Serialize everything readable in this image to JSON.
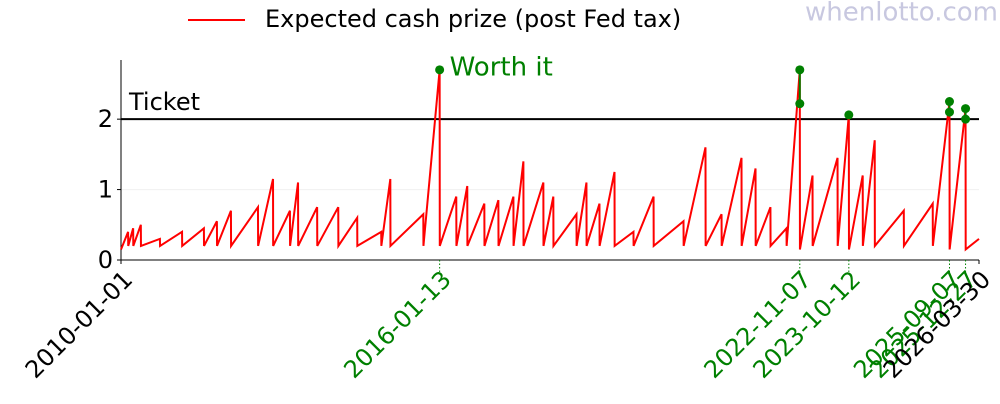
{
  "chart_data": {
    "type": "line",
    "watermark": "whenlotto.com",
    "x": [
      "2010-01-01",
      "2010-02-19",
      "2010-02-20",
      "2010-03-26",
      "2010-03-27",
      "2010-05-18",
      "2010-05-19",
      "2010-09-27",
      "2010-09-28",
      "2011-02-27",
      "2011-02-28",
      "2011-07-28",
      "2011-07-29",
      "2011-10-26",
      "2011-10-27",
      "2012-01-31",
      "2012-02-01",
      "2012-08-05",
      "2012-08-06",
      "2012-11-17",
      "2012-11-18",
      "2013-03-14",
      "2013-03-15",
      "2013-05-09",
      "2013-05-10",
      "2013-09-18",
      "2013-09-19",
      "2014-02-11",
      "2014-02-12",
      "2014-06-22",
      "2014-06-23",
      "2014-12-05",
      "2014-12-06",
      "2015-02-06",
      "2015-02-07",
      "2015-09-22",
      "2015-09-23",
      "2016-01-13",
      "2016-01-14",
      "2016-05-07",
      "2016-05-08",
      "2016-07-22",
      "2016-07-23",
      "2016-11-17",
      "2016-11-18",
      "2017-02-22",
      "2017-02-23",
      "2017-06-06",
      "2017-06-07",
      "2017-08-14",
      "2017-08-15",
      "2017-12-30",
      "2017-12-31",
      "2018-03-09",
      "2018-03-10",
      "2018-08-16",
      "2018-08-17",
      "2018-10-24",
      "2018-10-25",
      "2019-01-22",
      "2019-01-23",
      "2019-05-06",
      "2019-05-07",
      "2019-09-14",
      "2019-09-15",
      "2020-01-31",
      "2020-02-01",
      "2020-08-25",
      "2020-08-26",
      "2021-01-24",
      "2021-01-25",
      "2021-05-15",
      "2021-05-16",
      "2021-09-30",
      "2021-10-01",
      "2022-01-05",
      "2022-01-06",
      "2022-04-18",
      "2022-04-19",
      "2022-08-07",
      "2022-08-08",
      "2022-11-07",
      "2022-11-08",
      "2023-02-03",
      "2023-02-04",
      "2023-07-26",
      "2023-07-27",
      "2023-10-12",
      "2023-10-13",
      "2024-01-16",
      "2024-01-17",
      "2024-04-08",
      "2024-04-09",
      "2024-10-26",
      "2024-10-27",
      "2025-05-14",
      "2025-05-15",
      "2025-09-07",
      "2025-09-08",
      "2025-12-27",
      "2025-12-28",
      "2026-03-30"
    ],
    "series": [
      {
        "name": "Expected cash prize (post Fed tax)",
        "color": "#ff0000",
        "values": [
          0.15,
          0.4,
          0.2,
          0.45,
          0.2,
          0.5,
          0.2,
          0.3,
          0.2,
          0.4,
          0.2,
          0.45,
          0.2,
          0.55,
          0.2,
          0.7,
          0.2,
          0.75,
          0.2,
          1.15,
          0.2,
          0.7,
          0.2,
          1.1,
          0.2,
          0.75,
          0.2,
          0.75,
          0.2,
          0.6,
          0.2,
          0.4,
          0.2,
          1.15,
          0.2,
          0.65,
          0.2,
          2.7,
          0.2,
          0.9,
          0.2,
          1.05,
          0.2,
          0.8,
          0.2,
          0.85,
          0.2,
          0.9,
          0.2,
          1.4,
          0.2,
          1.1,
          0.2,
          0.9,
          0.2,
          0.65,
          0.2,
          1.1,
          0.2,
          0.8,
          0.2,
          1.25,
          0.2,
          0.4,
          0.2,
          0.9,
          0.2,
          0.55,
          0.2,
          1.6,
          0.2,
          0.65,
          0.2,
          1.45,
          0.2,
          1.3,
          0.2,
          0.75,
          0.2,
          0.45,
          0.2,
          2.7,
          0.15,
          1.2,
          0.2,
          1.45,
          0.2,
          2.06,
          0.15,
          1.2,
          0.2,
          1.7,
          0.2,
          0.7,
          0.2,
          0.8,
          0.2,
          2.25,
          0.15,
          2.15,
          0.15,
          0.3
        ]
      }
    ],
    "markers": [
      {
        "x": "2016-01-13",
        "values": [
          2.7
        ]
      },
      {
        "x": "2022-11-07",
        "values": [
          2.7,
          2.22
        ]
      },
      {
        "x": "2023-10-12",
        "values": [
          2.06
        ]
      },
      {
        "x": "2025-09-07",
        "values": [
          2.25,
          2.1
        ]
      },
      {
        "x": "2025-12-27",
        "values": [
          2.15,
          2.0
        ]
      }
    ],
    "marker_color": "#008000",
    "reference_line": {
      "value": 2,
      "label": "Ticket",
      "color": "#000000"
    },
    "annotation": "Worth it",
    "xlim": [
      "2010-01-01",
      "2026-03-30"
    ],
    "xticks": [
      "2010-01-01",
      "2016-01-13",
      "2022-11-07",
      "2023-10-12",
      "2025-09-07",
      "2025-12-27",
      "2026-03-30"
    ],
    "ylim": [
      0,
      2.84
    ],
    "yticks": [
      0,
      1,
      2
    ],
    "grid": true
  }
}
